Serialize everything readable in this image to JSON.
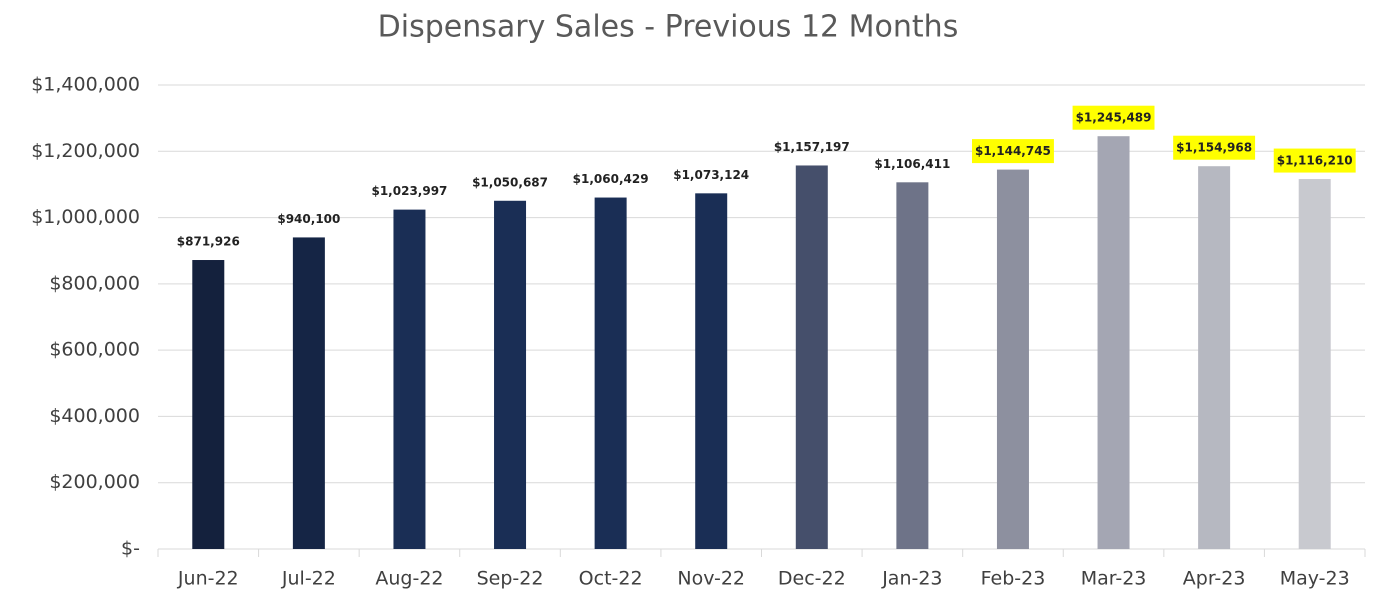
{
  "chart_data": {
    "type": "bar",
    "title": "Dispensary Sales - Previous 12 Months",
    "categories": [
      "Jun-22",
      "Jul-22",
      "Aug-22",
      "Sep-22",
      "Oct-22",
      "Nov-22",
      "Dec-22",
      "Jan-23",
      "Feb-23",
      "Mar-23",
      "Apr-23",
      "May-23"
    ],
    "values": [
      871926,
      940100,
      1023997,
      1050687,
      1060429,
      1073124,
      1157197,
      1106411,
      1144745,
      1245489,
      1154968,
      1116210
    ],
    "value_labels": [
      "$871,926",
      "$940,100",
      "$1,023,997",
      "$1,050,687",
      "$1,060,429",
      "$1,073,124",
      "$1,157,197",
      "$1,106,411",
      "$1,144,745",
      "$1,245,489",
      "$1,154,968",
      "$1,116,210"
    ],
    "colors": [
      "#14213d",
      "#152545",
      "#1a2e55",
      "#1a2e55",
      "#1a2e55",
      "#1a2e55",
      "#454f6b",
      "#6e7388",
      "#8d909f",
      "#a4a6b3",
      "#b6b8c1",
      "#c8c9cf"
    ],
    "label_highlights": [
      null,
      null,
      null,
      null,
      null,
      null,
      null,
      null,
      "#ffff00",
      "#ffff00",
      "#ffff00",
      "#ffff00"
    ],
    "ylim": [
      0,
      1400000
    ],
    "yticks": [
      {
        "value": 0,
        "label": "$-"
      },
      {
        "value": 200000,
        "label": "$200,000"
      },
      {
        "value": 400000,
        "label": "$400,000"
      },
      {
        "value": 600000,
        "label": "$600,000"
      },
      {
        "value": 800000,
        "label": "$800,000"
      },
      {
        "value": 1000000,
        "label": "$1,000,000"
      },
      {
        "value": 1200000,
        "label": "$1,200,000"
      },
      {
        "value": 1400000,
        "label": "$1,400,000"
      }
    ],
    "grid": true
  }
}
